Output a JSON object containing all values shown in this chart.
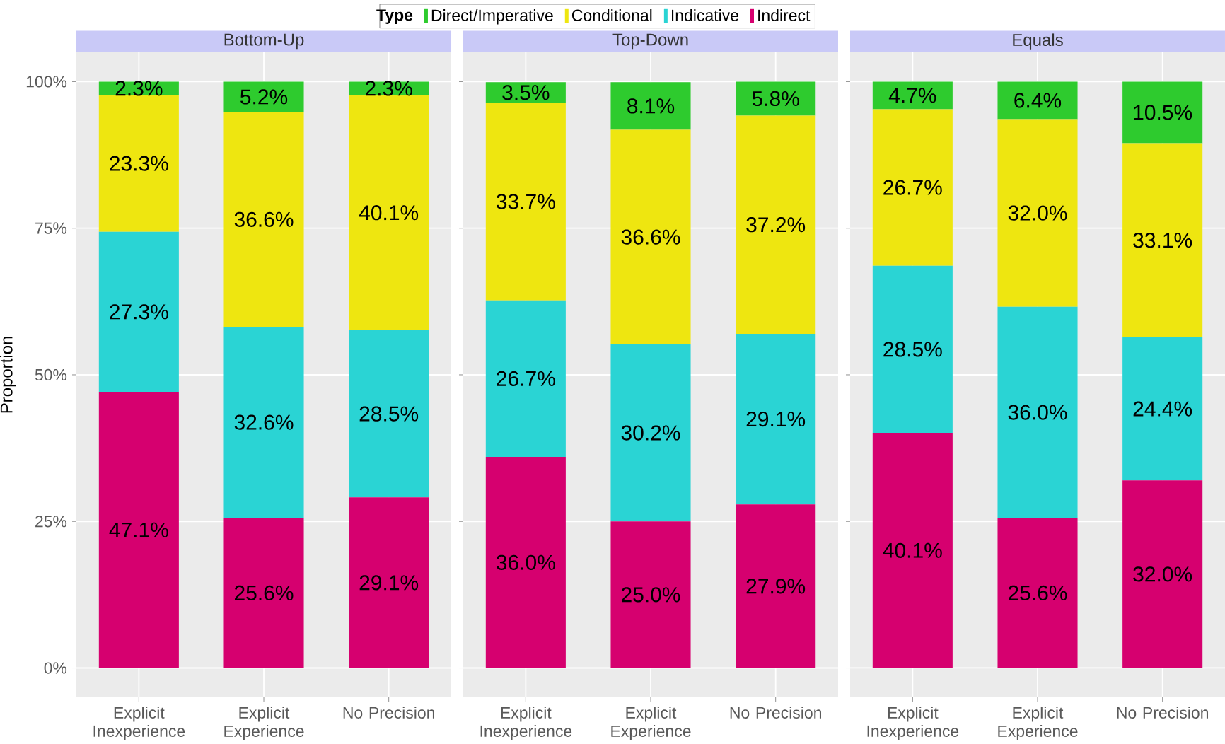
{
  "chart_data": [
    {
      "type": "bar",
      "stacked": true,
      "title": "Bottom-Up",
      "ylabel": "Proportion",
      "legend_title": "Type",
      "legend": "top",
      "grid": true,
      "categories": [
        "Explicit Inexperience",
        "Explicit Experience",
        "No Precision"
      ],
      "ylim": [
        -5,
        105
      ],
      "yticks": [
        {
          "value": 0,
          "label": "0%"
        },
        {
          "value": 25,
          "label": "25%"
        },
        {
          "value": 50,
          "label": "50%"
        },
        {
          "value": 75,
          "label": "75%"
        },
        {
          "value": 100,
          "label": "100%"
        }
      ],
      "series": [
        {
          "name": "Indirect",
          "color": "#d6006f",
          "values": [
            47.1,
            25.6,
            29.1
          ],
          "value_labels": [
            "47.1%",
            "25.6%",
            "29.1%"
          ]
        },
        {
          "name": "Indicative",
          "color": "#2ad4d4",
          "values": [
            27.3,
            32.6,
            28.5
          ],
          "value_labels": [
            "27.3%",
            "32.6%",
            "28.5%"
          ]
        },
        {
          "name": "Conditional",
          "color": "#eee610",
          "values": [
            23.3,
            36.6,
            40.1
          ],
          "value_labels": [
            "23.3%",
            "36.6%",
            "40.1%"
          ]
        },
        {
          "name": "Direct/Imperative",
          "color": "#2ecb2e",
          "values": [
            2.3,
            5.2,
            2.3
          ],
          "value_labels": [
            "2.3%",
            "5.2%",
            "2.3%"
          ]
        }
      ]
    },
    {
      "type": "bar",
      "stacked": true,
      "title": "Top-Down",
      "grid": true,
      "tick_labels": "x",
      "categories": [
        "Explicit Inexperience",
        "Explicit Experience",
        "No Precision"
      ],
      "ylim": [
        -5,
        105
      ],
      "yticks": [
        {
          "value": 0,
          "label": null
        },
        {
          "value": 25,
          "label": null
        },
        {
          "value": 50,
          "label": null
        },
        {
          "value": 75,
          "label": null
        },
        {
          "value": 100,
          "label": null
        }
      ],
      "series": [
        {
          "color": "#d6006f",
          "values": [
            36.0,
            25.0,
            27.9
          ],
          "value_labels": [
            "36.0%",
            "25.0%",
            "27.9%"
          ]
        },
        {
          "color": "#2ad4d4",
          "values": [
            26.7,
            30.2,
            29.1
          ],
          "value_labels": [
            "26.7%",
            "30.2%",
            "29.1%"
          ]
        },
        {
          "color": "#eee610",
          "values": [
            33.7,
            36.6,
            37.2
          ],
          "value_labels": [
            "33.7%",
            "36.6%",
            "37.2%"
          ]
        },
        {
          "color": "#2ecb2e",
          "values": [
            3.5,
            8.1,
            5.8
          ],
          "value_labels": [
            "3.5%",
            "8.1%",
            "5.8%"
          ]
        }
      ]
    },
    {
      "type": "bar",
      "stacked": true,
      "title": "Equals",
      "grid": true,
      "tick_labels": "x",
      "categories": [
        "Explicit Inexperience",
        "Explicit Experience",
        "No Precision"
      ],
      "ylim": [
        -5,
        105
      ],
      "yticks": [
        {
          "value": 0,
          "label": null
        },
        {
          "value": 25,
          "label": null
        },
        {
          "value": 50,
          "label": null
        },
        {
          "value": 75,
          "label": null
        },
        {
          "value": 100,
          "label": null
        }
      ],
      "series": [
        {
          "color": "#d6006f",
          "values": [
            40.1,
            25.6,
            32.0
          ],
          "value_labels": [
            "40.1%",
            "25.6%",
            "32.0%"
          ]
        },
        {
          "color": "#2ad4d4",
          "values": [
            28.5,
            36.0,
            24.4
          ],
          "value_labels": [
            "28.5%",
            "36.0%",
            "24.4%"
          ]
        },
        {
          "color": "#eee610",
          "values": [
            26.7,
            32.0,
            33.1
          ],
          "value_labels": [
            "26.7%",
            "32.0%",
            "33.1%"
          ]
        },
        {
          "color": "#2ecb2e",
          "values": [
            4.7,
            6.4,
            10.5
          ],
          "value_labels": [
            "4.7%",
            "6.4%",
            "10.5%"
          ]
        }
      ]
    }
  ]
}
